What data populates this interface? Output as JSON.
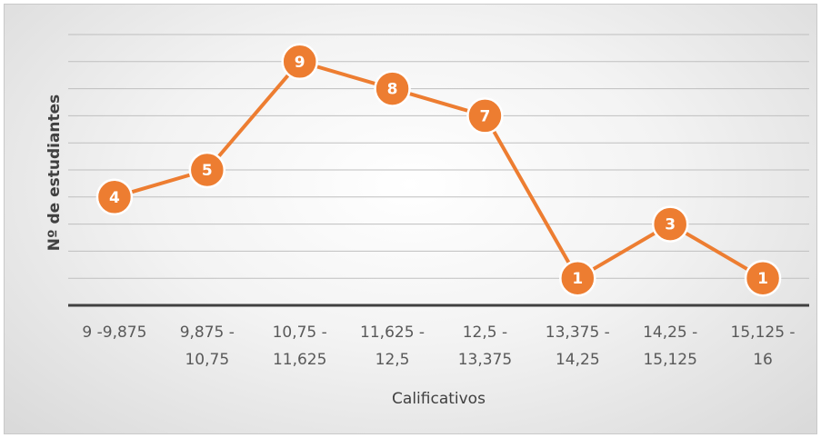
{
  "chart_data": {
    "type": "line",
    "title": "",
    "xlabel": "Calificativos",
    "ylabel": "Nº de estudiantes",
    "categories": [
      [
        "9 -9,875"
      ],
      [
        "9,875 -",
        "10,75"
      ],
      [
        "10,75 -",
        "11,625"
      ],
      [
        "11,625 -",
        "12,5"
      ],
      [
        "12,5 -",
        "13,375"
      ],
      [
        "13,375 -",
        "14,25"
      ],
      [
        "14,25 -",
        "15,125"
      ],
      [
        "15,125 -",
        "16"
      ]
    ],
    "series": [
      {
        "values": [
          4,
          5,
          9,
          8,
          7,
          1,
          3,
          1
        ]
      }
    ],
    "ylim": [
      0,
      10
    ],
    "grid": true,
    "legend": "none",
    "colors": {
      "line": "#ED7D31",
      "marker": "#ED7D31",
      "marker_edge": "#ffffff",
      "grid": "#bfbfbf",
      "axis": "#404040"
    }
  }
}
